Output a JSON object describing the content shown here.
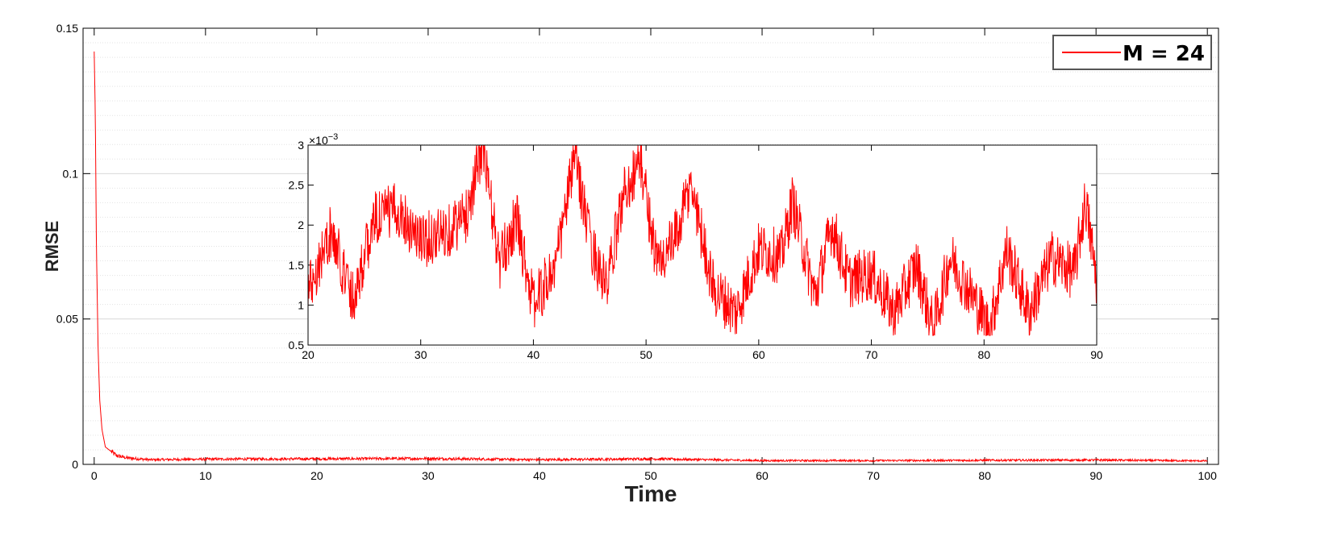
{
  "chart_data": [
    {
      "type": "line",
      "xlabel": "Time",
      "ylabel": "RMSE",
      "xlim": [
        -1,
        101
      ],
      "ylim": [
        0,
        0.15
      ],
      "xticks": [
        0,
        10,
        20,
        30,
        40,
        50,
        60,
        70,
        80,
        90,
        100
      ],
      "yticks": [
        0,
        0.05,
        0.1,
        0.15
      ],
      "ytick_labels": [
        "0",
        "0.05",
        "0.1",
        "0.15"
      ],
      "grid": "major and minor y gridlines (light gray, dotted minor)",
      "legend": {
        "position": "top-right",
        "entries": [
          "M = 24"
        ]
      },
      "series": [
        {
          "name": "M = 24",
          "color": "#ff0000",
          "x": [
            0,
            0.1,
            0.2,
            0.35,
            0.5,
            0.7,
            1.0,
            1.5,
            2.0,
            3.0,
            5.0,
            10,
            20,
            30,
            40,
            50,
            60,
            70,
            80,
            90,
            100
          ],
          "y": [
            0.142,
            0.12,
            0.075,
            0.04,
            0.022,
            0.012,
            0.006,
            0.0045,
            0.003,
            0.0022,
            0.0016,
            0.0018,
            0.0019,
            0.002,
            0.0016,
            0.0019,
            0.0013,
            0.0013,
            0.0014,
            0.0015,
            0.0012
          ]
        }
      ]
    },
    {
      "type": "line",
      "title": "",
      "xlim": [
        20,
        90
      ],
      "ylim": [
        0.0005,
        0.003
      ],
      "xticks": [
        20,
        30,
        40,
        50,
        60,
        70,
        80,
        90
      ],
      "yticks": [
        0.0005,
        0.001,
        0.0015,
        0.002,
        0.0025,
        0.003
      ],
      "ytick_labels": [
        "0.5",
        "1",
        "1.5",
        "2",
        "2.5",
        "3"
      ],
      "y_multiplier_label": "×10",
      "y_multiplier_exponent": "−3",
      "series": [
        {
          "name": "M = 24",
          "color": "#ff0000",
          "x": [
            20,
            22,
            24,
            26,
            28,
            30,
            32,
            34,
            35.5,
            37,
            38.5,
            40,
            42,
            43.7,
            45,
            46.5,
            48,
            49.5,
            51,
            52.5,
            54,
            56,
            58,
            60,
            62,
            63,
            65,
            66.5,
            68,
            70,
            72,
            74,
            75.5,
            77,
            79,
            80.5,
            82,
            84,
            86,
            88,
            89,
            90
          ],
          "y": [
            0.0012,
            0.0019,
            0.0011,
            0.0021,
            0.0022,
            0.0018,
            0.0019,
            0.0021,
            0.003,
            0.0015,
            0.0021,
            0.001,
            0.0015,
            0.0029,
            0.0018,
            0.0012,
            0.0024,
            0.0028,
            0.0015,
            0.0018,
            0.0025,
            0.0012,
            0.0009,
            0.0017,
            0.0016,
            0.0023,
            0.0011,
            0.002,
            0.0013,
            0.0014,
            0.0009,
            0.0015,
            0.0007,
            0.0016,
            0.0011,
            0.0007,
            0.0017,
            0.0009,
            0.0016,
            0.0014,
            0.0023,
            0.0013
          ]
        }
      ]
    }
  ]
}
